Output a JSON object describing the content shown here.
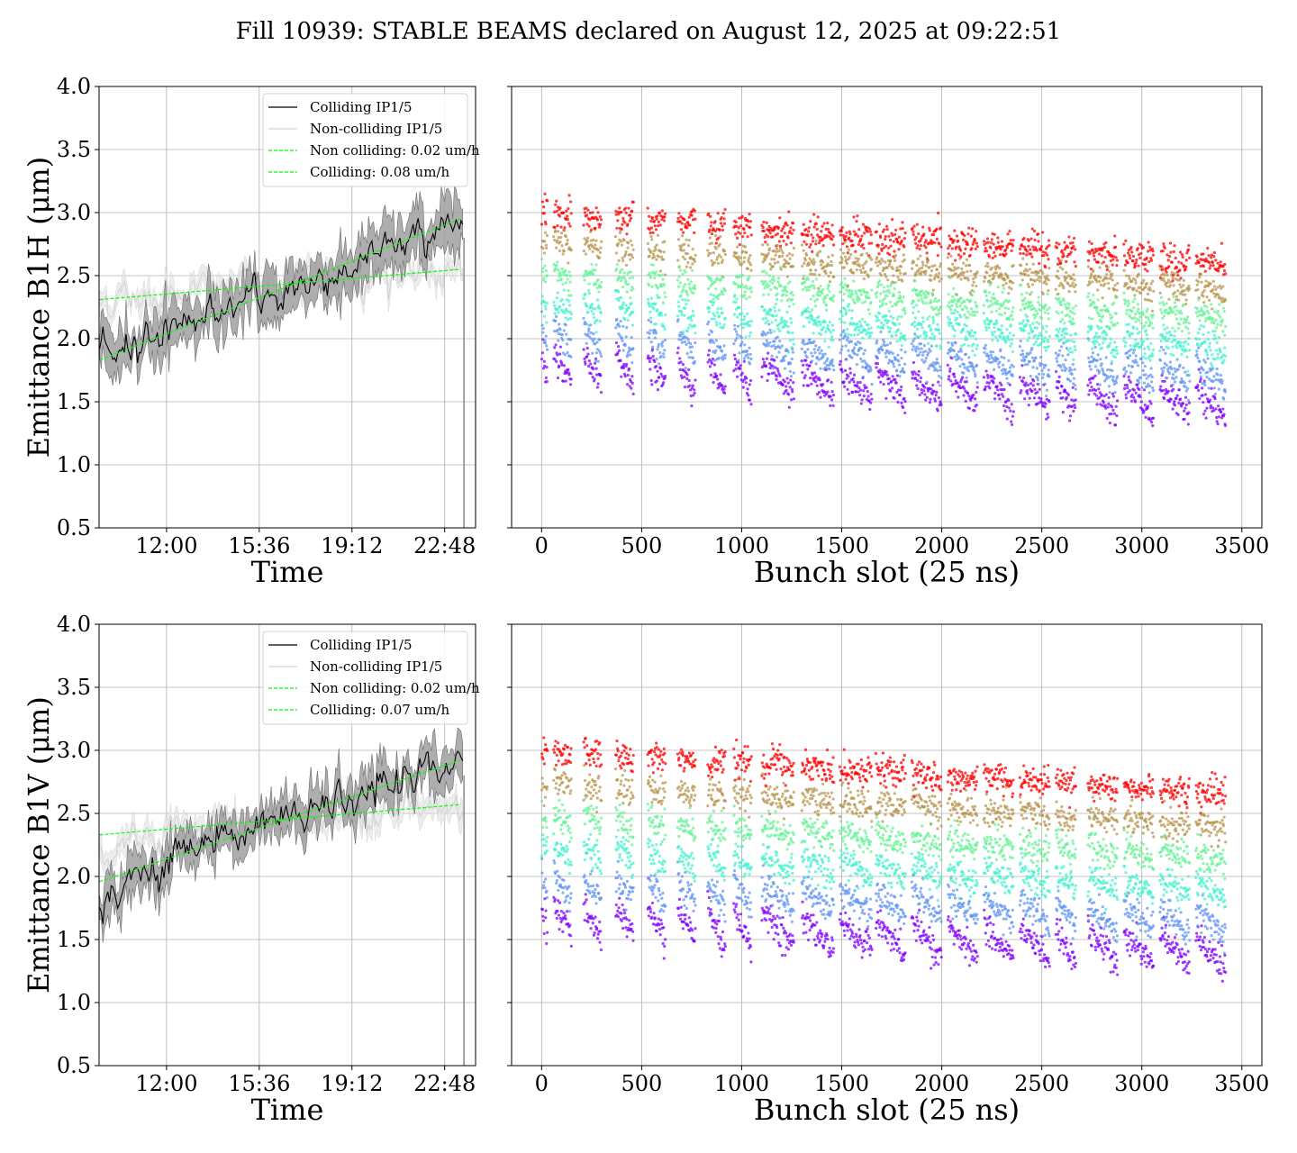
{
  "title": "Fill 10939: STABLE BEAMS declared on August 12, 2025 at 09:22:51",
  "colors": {
    "colliding_line": "#000000",
    "colliding_band": "#a0a0a0",
    "noncolliding_line": "#d3d3d3",
    "noncolliding_band": "#e6e6e6",
    "fit_line": "#00ff00",
    "grid": "#b0b0b0",
    "scatter_cmap": "rainbow"
  },
  "chart_data": [
    {
      "type": "line",
      "panel": "top-left",
      "xlabel": "Time",
      "ylabel": "Emittance B1H (μm)",
      "xticks": [
        "12:00",
        "15:36",
        "19:12",
        "22:48"
      ],
      "xlim_hours": [
        9.38,
        24.0
      ],
      "ylim": [
        0.5,
        4.0
      ],
      "yticks": [
        "0.5",
        "1.0",
        "1.5",
        "2.0",
        "2.5",
        "3.0",
        "3.5",
        "4.0"
      ],
      "grid": true,
      "legend_position": "upper-right",
      "legend": [
        "Colliding IP1/5",
        "Non-colliding IP1/5",
        "Non colliding: 0.02 um/h",
        "Colliding: 0.08 um/h"
      ],
      "series": [
        {
          "name": "Colliding IP1/5",
          "hours": [
            9.4,
            11.0,
            13.0,
            15.0,
            17.0,
            19.0,
            21.0,
            23.0
          ],
          "values": [
            1.82,
            2.0,
            2.17,
            2.27,
            2.4,
            2.55,
            2.75,
            2.9
          ],
          "band": 0.16
        },
        {
          "name": "Non-colliding IP1/5",
          "hours": [
            9.4,
            11.0,
            13.0,
            15.0,
            17.0,
            19.0,
            21.0,
            23.0
          ],
          "values": [
            2.3,
            2.35,
            2.38,
            2.42,
            2.45,
            2.48,
            2.52,
            2.53
          ],
          "band": 0.07
        },
        {
          "name": "Non colliding: 0.02 um/h",
          "fit": [
            2.31,
            2.55
          ],
          "style": "dashed"
        },
        {
          "name": "Colliding: 0.08 um/h",
          "fit": [
            1.83,
            2.95
          ],
          "style": "dashed"
        }
      ]
    },
    {
      "type": "scatter",
      "panel": "top-right",
      "xlabel": "Bunch slot (25 ns)",
      "xlim": [
        -150,
        3600
      ],
      "xticks": [
        "0",
        "500",
        "1000",
        "1500",
        "2000",
        "2500",
        "3000",
        "3500"
      ],
      "ylim": [
        0.5,
        4.0
      ],
      "grid": true,
      "trains": [
        {
          "start": 0,
          "len": 30
        },
        {
          "start": 60,
          "len": 90
        },
        {
          "start": 210,
          "len": 90
        },
        {
          "start": 370,
          "len": 90
        },
        {
          "start": 530,
          "len": 90
        },
        {
          "start": 680,
          "len": 90
        },
        {
          "start": 830,
          "len": 90
        },
        {
          "start": 960,
          "len": 90
        },
        {
          "start": 1100,
          "len": 160
        },
        {
          "start": 1300,
          "len": 160
        },
        {
          "start": 1490,
          "len": 160
        },
        {
          "start": 1670,
          "len": 150
        },
        {
          "start": 1850,
          "len": 150
        },
        {
          "start": 2030,
          "len": 150
        },
        {
          "start": 2210,
          "len": 150
        },
        {
          "start": 2390,
          "len": 150
        },
        {
          "start": 2570,
          "len": 100
        },
        {
          "start": 2730,
          "len": 150
        },
        {
          "start": 2910,
          "len": 150
        },
        {
          "start": 3090,
          "len": 150
        },
        {
          "start": 3270,
          "len": 150
        }
      ],
      "emittance_start": {
        "range": [
          1.9,
          3.0
        ],
        "x": 0
      },
      "emittance_end": {
        "range": [
          1.6,
          2.6
        ],
        "x": 3440
      }
    },
    {
      "type": "line",
      "panel": "bottom-left",
      "xlabel": "Time",
      "ylabel": "Emittance B1V (μm)",
      "xticks": [
        "12:00",
        "15:36",
        "19:12",
        "22:48"
      ],
      "xlim_hours": [
        9.38,
        24.0
      ],
      "ylim": [
        0.5,
        4.0
      ],
      "yticks": [
        "0.5",
        "1.0",
        "1.5",
        "2.0",
        "2.5",
        "3.0",
        "3.5",
        "4.0"
      ],
      "grid": true,
      "legend_position": "upper-right",
      "legend": [
        "Colliding IP1/5",
        "Non-colliding IP1/5",
        "Non colliding: 0.02 um/h",
        "Colliding: 0.07 um/h"
      ],
      "series": [
        {
          "name": "Colliding IP1/5",
          "hours": [
            9.4,
            11.0,
            13.0,
            15.0,
            17.0,
            19.0,
            21.0,
            23.0
          ],
          "values": [
            1.8,
            2.05,
            2.22,
            2.35,
            2.5,
            2.6,
            2.75,
            2.88
          ],
          "band": 0.14
        },
        {
          "name": "Non-colliding IP1/5",
          "hours": [
            9.4,
            11.0,
            13.0,
            15.0,
            17.0,
            19.0,
            21.0,
            23.0
          ],
          "values": [
            2.2,
            2.32,
            2.38,
            2.42,
            2.46,
            2.5,
            2.54,
            2.56
          ],
          "band": 0.08
        },
        {
          "name": "Non colliding: 0.02 um/h",
          "fit": [
            2.33,
            2.57
          ],
          "style": "dashed"
        },
        {
          "name": "Colliding: 0.07 um/h",
          "fit": [
            1.96,
            2.92
          ],
          "style": "dashed"
        }
      ]
    },
    {
      "type": "scatter",
      "panel": "bottom-right",
      "xlabel": "Bunch slot (25 ns)",
      "xlim": [
        -150,
        3600
      ],
      "xticks": [
        "0",
        "500",
        "1000",
        "1500",
        "2000",
        "2500",
        "3000",
        "3500"
      ],
      "ylim": [
        0.5,
        4.0
      ],
      "grid": true,
      "emittance_start": {
        "range": [
          1.8,
          3.0
        ],
        "x": 0
      },
      "emittance_end": {
        "range": [
          1.5,
          2.65
        ],
        "x": 3440
      }
    }
  ]
}
